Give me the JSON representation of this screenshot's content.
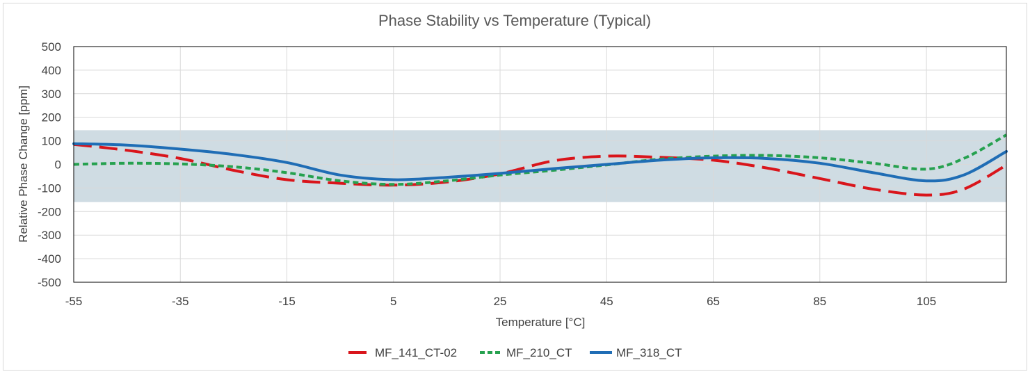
{
  "chart_data": {
    "type": "line",
    "title": "Phase Stability vs Temperature (Typical)",
    "xlabel": "Temperature [°C]",
    "ylabel": "Relative Phase Change [ppm]",
    "xlim": [
      -55,
      120
    ],
    "ylim": [
      -500,
      500
    ],
    "x_ticks": [
      -55,
      -35,
      -15,
      5,
      25,
      45,
      65,
      85,
      105
    ],
    "y_ticks": [
      500,
      400,
      300,
      200,
      100,
      0,
      -100,
      -200,
      -300,
      -400,
      -500
    ],
    "band": {
      "from": -160,
      "to": 145,
      "color": "#cfdce3"
    },
    "grid": true,
    "legend": "bottom",
    "series": [
      {
        "name": "MF_141_CT-02",
        "color": "#d9151b",
        "style": "long-dash",
        "x": [
          -55,
          -45,
          -35,
          -25,
          -15,
          -5,
          5,
          15,
          25,
          35,
          45,
          55,
          65,
          75,
          85,
          95,
          105,
          112,
          120
        ],
        "y": [
          85,
          60,
          25,
          -25,
          -65,
          -80,
          -88,
          -75,
          -40,
          15,
          35,
          30,
          18,
          -15,
          -60,
          -105,
          -130,
          -105,
          -3
        ]
      },
      {
        "name": "MF_210_CT",
        "color": "#26a14f",
        "style": "short-dash",
        "x": [
          -55,
          -45,
          -35,
          -25,
          -15,
          -5,
          5,
          15,
          25,
          35,
          45,
          55,
          65,
          75,
          85,
          95,
          105,
          112,
          120
        ],
        "y": [
          0,
          5,
          2,
          -10,
          -35,
          -70,
          -85,
          -70,
          -45,
          -25,
          -2,
          22,
          35,
          38,
          28,
          5,
          -20,
          25,
          125
        ]
      },
      {
        "name": "MF_318_CT",
        "color": "#1f6db5",
        "style": "solid",
        "x": [
          -55,
          -45,
          -35,
          -25,
          -15,
          -5,
          5,
          15,
          25,
          35,
          45,
          55,
          65,
          75,
          85,
          95,
          105,
          112,
          120
        ],
        "y": [
          88,
          82,
          65,
          42,
          8,
          -45,
          -65,
          -55,
          -38,
          -18,
          0,
          18,
          28,
          25,
          5,
          -35,
          -70,
          -45,
          55
        ]
      }
    ]
  }
}
